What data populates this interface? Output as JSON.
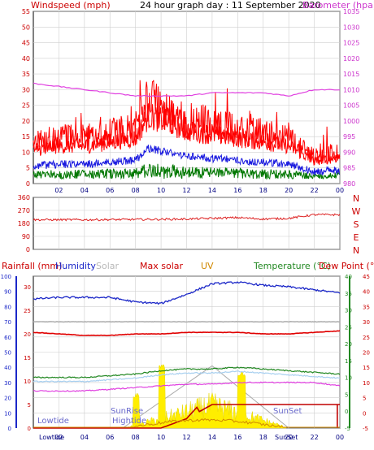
{
  "title": "24 hour graph day : 11 September 2020",
  "colors": {
    "wind": "#ff0000",
    "gust": "#ff0000",
    "avg": "#1a1adf",
    "calm": "#007700",
    "baro": "#e040e0",
    "dir": "#dd2222",
    "rain": "#c00000",
    "humidity": "#1c28c8",
    "solar": "#b0b0b0",
    "maxsolar": "#e00000",
    "uv": "#d08800",
    "temp": "#228822",
    "dew": "#e00020",
    "grid": "#cfcfcf",
    "frame": "#000000"
  },
  "panel1": {
    "left_label": "Windspeed (mph)",
    "right_label": "Barometer (hpa)",
    "left_ticks": [
      "0",
      "5",
      "10",
      "15",
      "20",
      "25",
      "30",
      "35",
      "40",
      "45",
      "50",
      "55"
    ],
    "right_ticks": [
      "980",
      "985",
      "990",
      "995",
      "1000",
      "1005",
      "1010",
      "1015",
      "1020",
      "1025",
      "1030",
      "1035"
    ]
  },
  "panel2": {
    "ticks": [
      "0",
      "90",
      "180",
      "270",
      "360"
    ],
    "compass": [
      "N",
      "W",
      "S",
      "E",
      "N"
    ]
  },
  "panel3": {
    "labels": {
      "rainfall": "Rainfall (mm)",
      "humidity": "Humidity",
      "solar": "Solar",
      "maxsolar": "Max solar",
      "uv": "UV",
      "temperature": "Temperature (°C)",
      "dewpoint": "Dew Point (°C)"
    },
    "humidity_ticks": [
      "0",
      "10",
      "20",
      "30",
      "40",
      "50",
      "60",
      "70",
      "80",
      "90",
      "100"
    ],
    "rain_ticks": [
      "0",
      "5",
      "10",
      "15",
      "20",
      "25",
      "30"
    ],
    "temp_ticks": [
      "-5",
      "0",
      "5",
      "10",
      "15",
      "20",
      "25",
      "30",
      "35",
      "40"
    ],
    "dew_ticks": [
      "-5",
      "0",
      "5",
      "10",
      "15",
      "20",
      "25",
      "30",
      "35",
      "40",
      "45"
    ],
    "annotations": {
      "lowtide": "Lowtide",
      "sunrise": "SunRise",
      "hightide": "Hightide",
      "sunset": "SunSet",
      "x_lowtide": "Lowtide",
      "x_sunset": "SunSet"
    }
  },
  "x_ticks": [
    "02",
    "04",
    "06",
    "08",
    "10",
    "12",
    "14",
    "16",
    "18",
    "20",
    "22",
    "00"
  ],
  "x_ticks_bottom": [
    "02",
    "04",
    "06",
    "08",
    "10",
    "12",
    "14",
    "16",
    "18",
    "20",
    "22",
    "00"
  ],
  "chart_data": [
    {
      "type": "line",
      "title": "24 hour graph day : 11 September 2020",
      "xlabel": "",
      "ylabel": "Windspeed (mph)",
      "ylim": [
        0,
        55
      ],
      "y2label": "Barometer (hpa)",
      "y2lim": [
        980,
        1035
      ],
      "x": [
        0,
        2,
        4,
        6,
        8,
        9,
        10,
        12,
        14,
        16,
        18,
        20,
        22,
        24
      ],
      "series": [
        {
          "name": "Windspeed (mph)",
          "values": [
            9,
            10,
            10,
            11,
            12,
            18,
            17,
            14,
            13,
            12,
            11,
            10,
            6,
            7
          ]
        },
        {
          "name": "Barometer (hpa)",
          "values": [
            1012,
            1011,
            1010,
            1009,
            1008,
            1008,
            1008,
            1008,
            1009,
            1009,
            1009,
            1008,
            1010,
            1010
          ]
        }
      ]
    },
    {
      "type": "line",
      "title": "",
      "ylabel": "",
      "ylim": [
        0,
        360
      ],
      "x": [
        0,
        4,
        8,
        12,
        16,
        18,
        20,
        22,
        24
      ],
      "series": [
        {
          "name": "",
          "values": [
            205,
            205,
            207,
            210,
            220,
            210,
            215,
            240,
            240
          ]
        }
      ]
    },
    {
      "type": "line",
      "title": "",
      "x": [
        0,
        2,
        4,
        6,
        8,
        10,
        12,
        14,
        16,
        18,
        20,
        22,
        24
      ],
      "ylim_humidity": [
        0,
        100
      ],
      "ylim_rain": [
        0,
        30
      ],
      "ylim_temp": [
        -5,
        40
      ],
      "series": [
        {
          "name": "Humidity",
          "values": [
            85,
            86,
            86,
            86,
            83,
            82,
            88,
            95,
            96,
            94,
            93,
            91,
            89
          ]
        },
        {
          "name": "Solar",
          "values": [
            70,
            70,
            70,
            70,
            70,
            70,
            70,
            70,
            70,
            70,
            70,
            70,
            70
          ]
        },
        {
          "name": "Max solar",
          "values": [
            63,
            62,
            61,
            61,
            62,
            62,
            63,
            63,
            63,
            62,
            62,
            63,
            64
          ]
        },
        {
          "name": "Temperature (°C)",
          "values": [
            10,
            10,
            10,
            10.5,
            11,
            12,
            12.5,
            12.5,
            13,
            12.5,
            12,
            11.5,
            11
          ]
        },
        {
          "name": "Dew Point (°C)",
          "values": [
            6,
            6,
            6,
            6.5,
            7,
            7.5,
            8,
            8,
            8.5,
            8.5,
            8.5,
            8.5,
            7.5
          ]
        },
        {
          "name": "Rainfall (mm)",
          "values": [
            0,
            0,
            0,
            0,
            0,
            0,
            2,
            5,
            5,
            5,
            5,
            5,
            5
          ]
        },
        {
          "name": "UV",
          "values": [
            0,
            0,
            0,
            0,
            1,
            2,
            2,
            3,
            3,
            1,
            0,
            0,
            0
          ]
        }
      ]
    }
  ]
}
